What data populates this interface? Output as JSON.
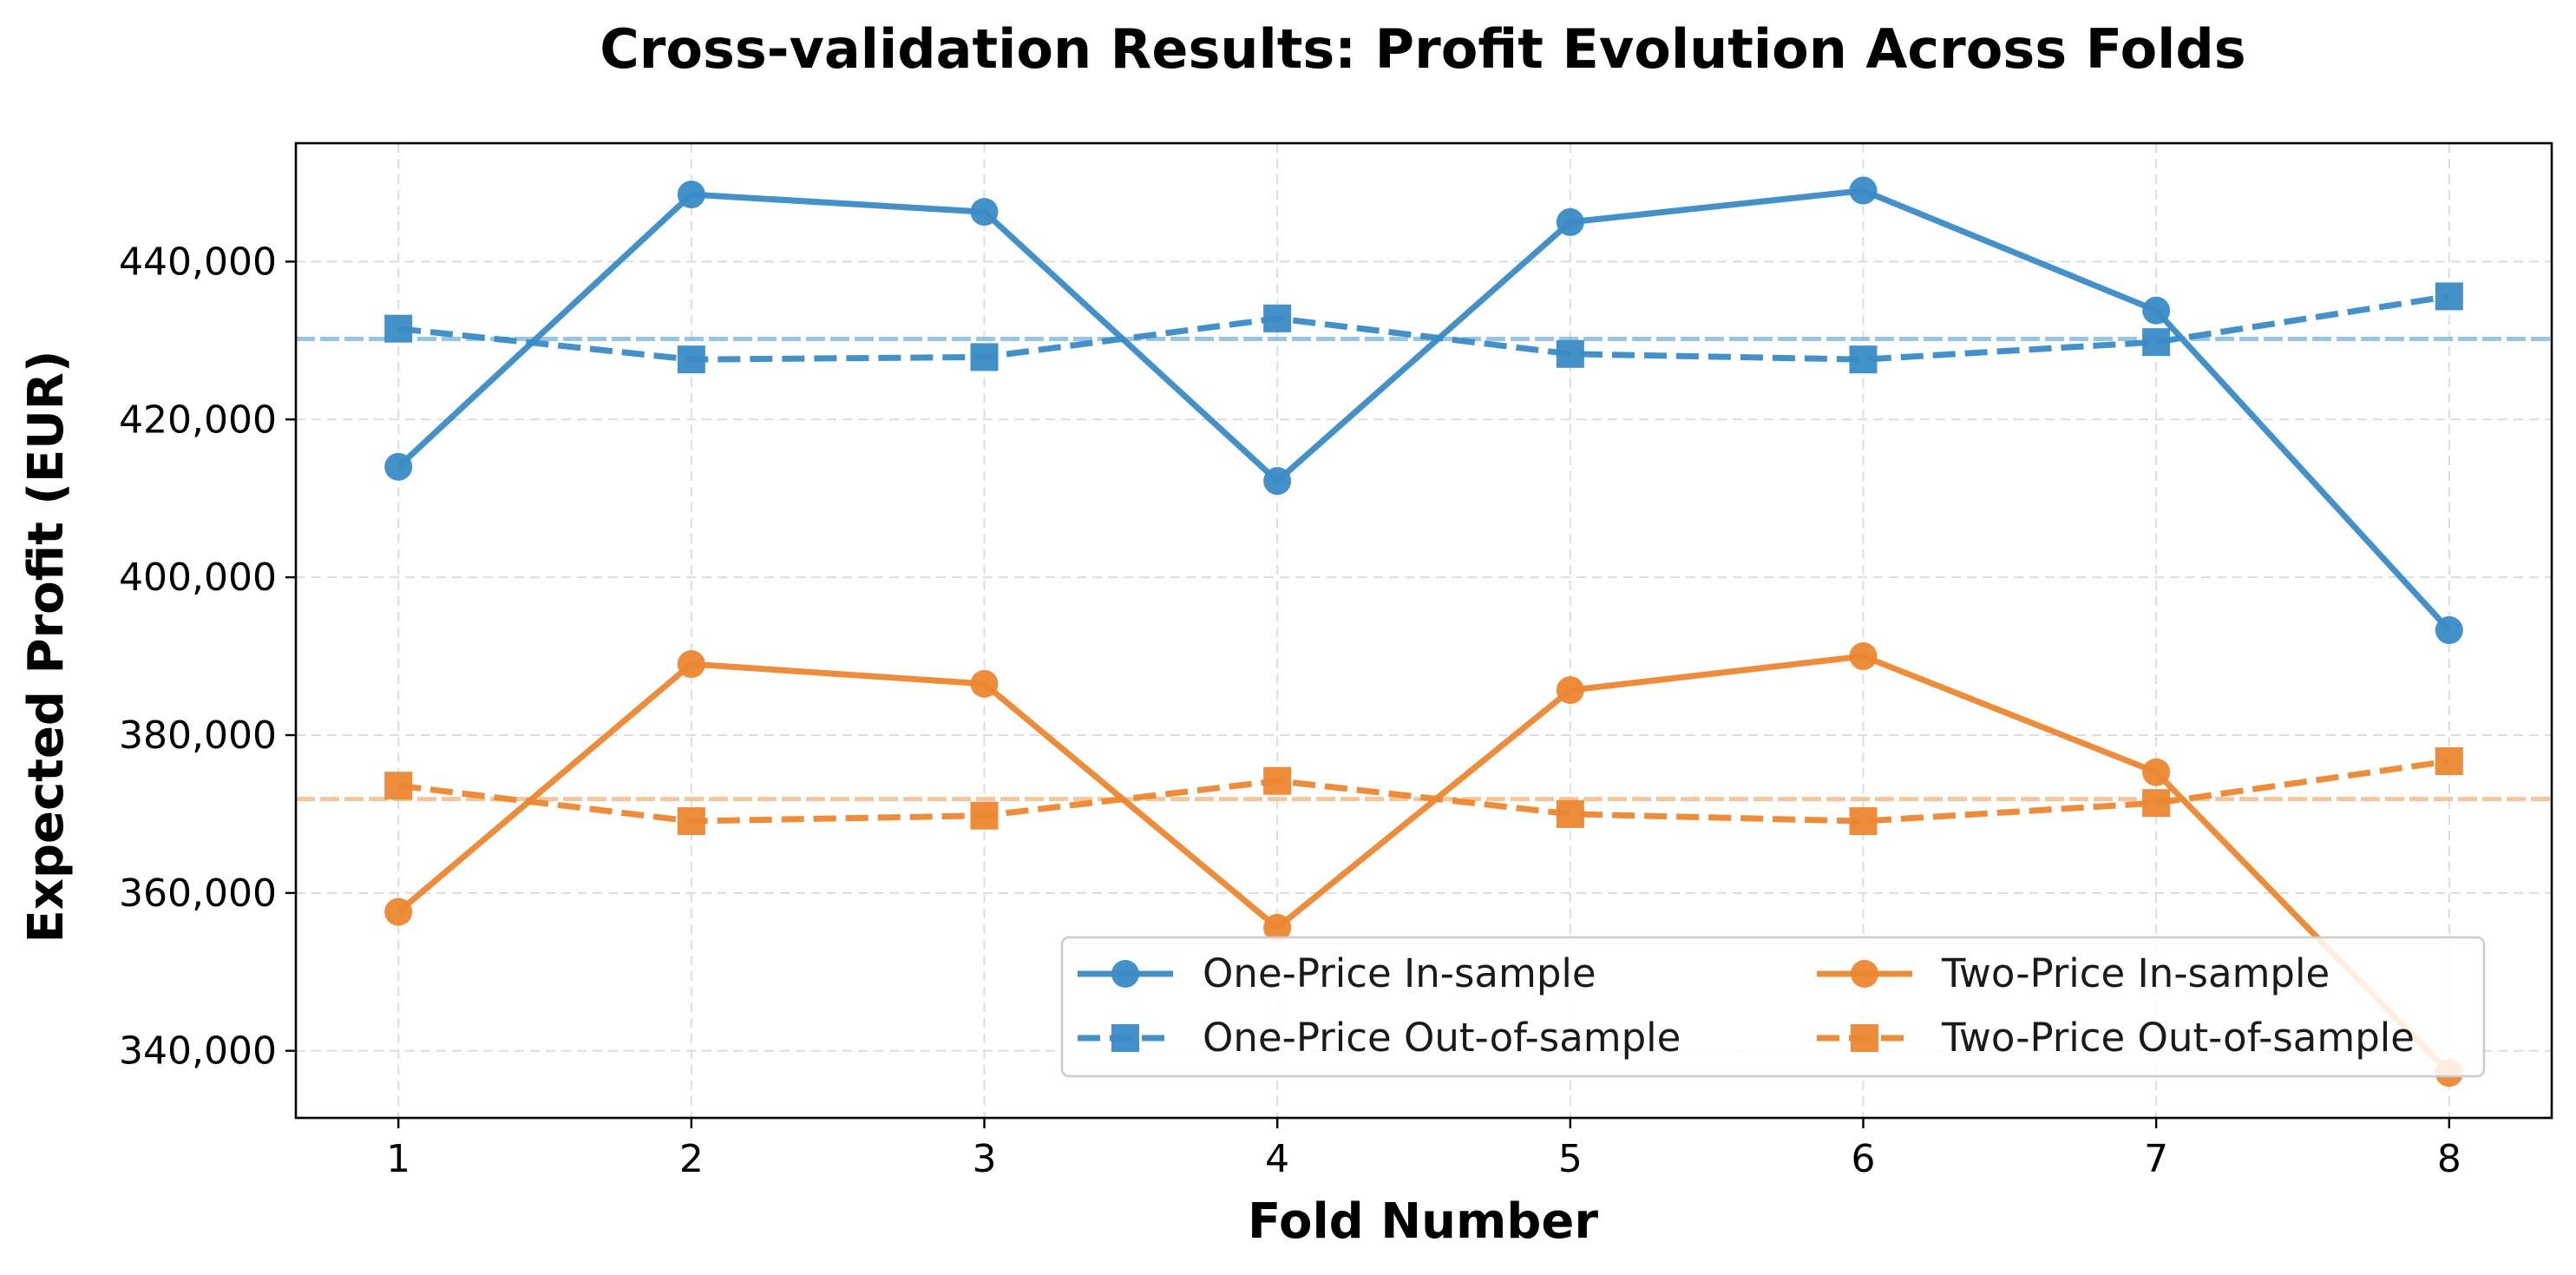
{
  "chart_data": {
    "type": "line",
    "title": "Cross-validation Results: Profit Evolution Across Folds",
    "xlabel": "Fold Number",
    "ylabel": "Expected Profit (EUR)",
    "x": [
      1,
      2,
      3,
      4,
      5,
      6,
      7,
      8
    ],
    "xlim": [
      0.65,
      8.35
    ],
    "ylim": [
      331500,
      455000
    ],
    "yticks": [
      340000,
      360000,
      380000,
      400000,
      420000,
      440000
    ],
    "ytick_labels": [
      "340,000",
      "360,000",
      "380,000",
      "400,000",
      "420,000",
      "440,000"
    ],
    "xtick_labels": [
      "1",
      "2",
      "3",
      "4",
      "5",
      "6",
      "7",
      "8"
    ],
    "grid": true,
    "legend_position": "lower-right",
    "legend_columns": 2,
    "series": [
      {
        "name": "One-Price In-sample",
        "values": [
          414000,
          448500,
          446300,
          412200,
          445000,
          449000,
          433800,
          393300
        ],
        "color": "#3a8bc6",
        "linestyle": "solid",
        "marker": "circle"
      },
      {
        "name": "One-Price Out-of-sample",
        "values": [
          431500,
          427600,
          427900,
          432800,
          428300,
          427600,
          429800,
          435600
        ],
        "color": "#3a8bc6",
        "linestyle": "dashed",
        "marker": "square"
      },
      {
        "name": "Two-Price In-sample",
        "values": [
          357600,
          389000,
          386500,
          355600,
          385700,
          390000,
          375300,
          337200
        ],
        "color": "#ec8730",
        "linestyle": "solid",
        "marker": "circle"
      },
      {
        "name": "Two-Price Out-of-sample",
        "values": [
          373600,
          369100,
          369800,
          374200,
          370000,
          369100,
          371400,
          376700
        ],
        "color": "#ec8730",
        "linestyle": "dashed",
        "marker": "square"
      }
    ],
    "reference_lines": [
      {
        "value": 430200,
        "color": "#8fbfe2"
      },
      {
        "value": 371900,
        "color": "#f5c08f"
      }
    ]
  }
}
